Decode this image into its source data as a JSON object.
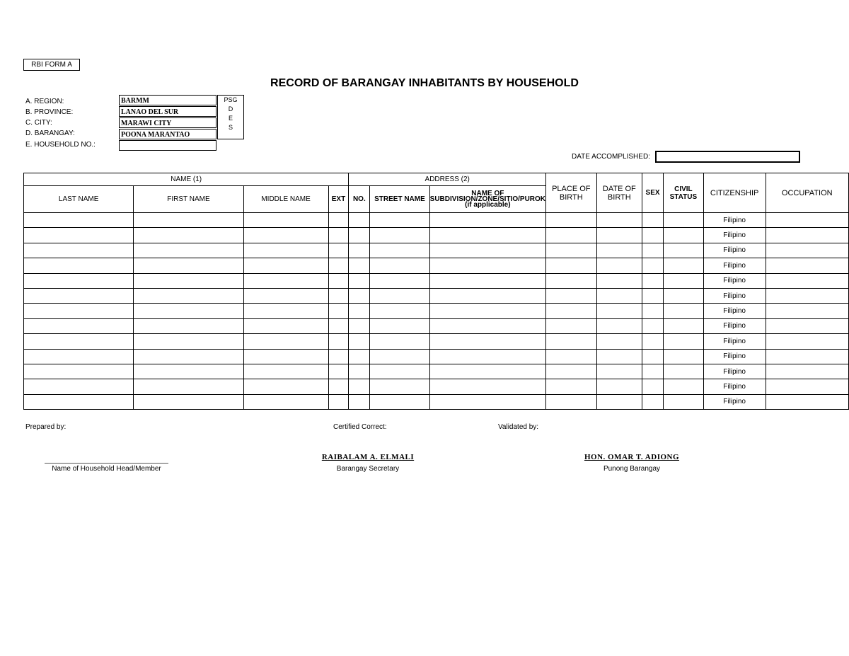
{
  "form_tag": "RBI FORM A",
  "title": "RECORD OF BARANGAY INHABITANTS BY HOUSEHOLD",
  "location": [
    {
      "label": "A. REGION:",
      "value": "BARMM"
    },
    {
      "label": "B. PROVINCE:",
      "value": "LANAO DEL SUR"
    },
    {
      "label": "C. CITY:",
      "value": "MARAWI CITY"
    },
    {
      "label": "D. BARANGAY:",
      "value": "POONA MARANTAO"
    },
    {
      "label": "E. HOUSEHOLD NO.:",
      "value": ""
    }
  ],
  "psgc": [
    "PSG",
    "D",
    "E",
    "S"
  ],
  "date_accomplished": {
    "label": "DATE ACCOMPLISHED:",
    "value": ""
  },
  "table": {
    "group_name": "NAME (1)",
    "group_address": "ADDRESS (2)",
    "columns": {
      "last_name": "LAST NAME",
      "first_name": "FIRST NAME",
      "middle_name": "MIDDLE NAME",
      "ext": "EXT",
      "no": "NO.",
      "street": "STREET NAME",
      "subdivision": "NAME OF SUBDIVISION/ZONE/SITIO/PUROK (if applicable)",
      "place_of_birth": "PLACE OF BIRTH",
      "date_of_birth": "DATE OF BIRTH",
      "sex": "SEX",
      "civil_status": "CIVIL STATUS",
      "citizenship": "CITIZENSHIP",
      "occupation": "OCCUPATION"
    },
    "rows": [
      "Filipino",
      "Filipino",
      "Filipino",
      "Filipino",
      "Filipino",
      "Filipino",
      "Filipino",
      "Filipino",
      "Filipino",
      "Filipino",
      "Filipino",
      "Filipino",
      "Filipino"
    ]
  },
  "footer": {
    "prepared_by": "Prepared by:",
    "certified": "Certified Correct:",
    "validated": "Validated by:",
    "household_head": "Name of Household Head/Member",
    "secretary_name": "RAIBALAM A. ELMALI",
    "secretary_title": "Barangay Secretary",
    "captain_name": "HON. OMAR T. ADIONG",
    "captain_title": "Punong Barangay"
  }
}
